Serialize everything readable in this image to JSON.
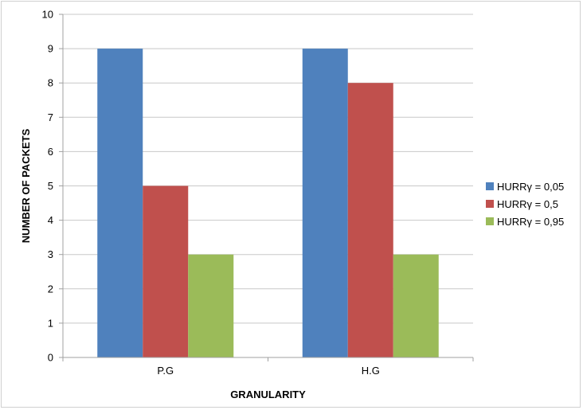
{
  "chart_data": {
    "type": "bar",
    "categories": [
      "P.G",
      "H.G"
    ],
    "series": [
      {
        "name": "HURRγ = 0,05",
        "values": [
          9,
          9
        ],
        "color": "#4F81BD"
      },
      {
        "name": "HURRγ = 0,5",
        "values": [
          5,
          8
        ],
        "color": "#C0504D"
      },
      {
        "name": "HURRγ = 0,95",
        "values": [
          3,
          3
        ],
        "color": "#9BBB59"
      }
    ],
    "title": "",
    "xlabel": "GRANULARITY",
    "ylabel": "NUMBER OF PACKETS",
    "ylim": [
      0,
      10
    ],
    "yticks": [
      "0",
      "1",
      "2",
      "3",
      "4",
      "5",
      "6",
      "7",
      "8",
      "9",
      "10"
    ],
    "grid": true,
    "legend_position": "right"
  }
}
